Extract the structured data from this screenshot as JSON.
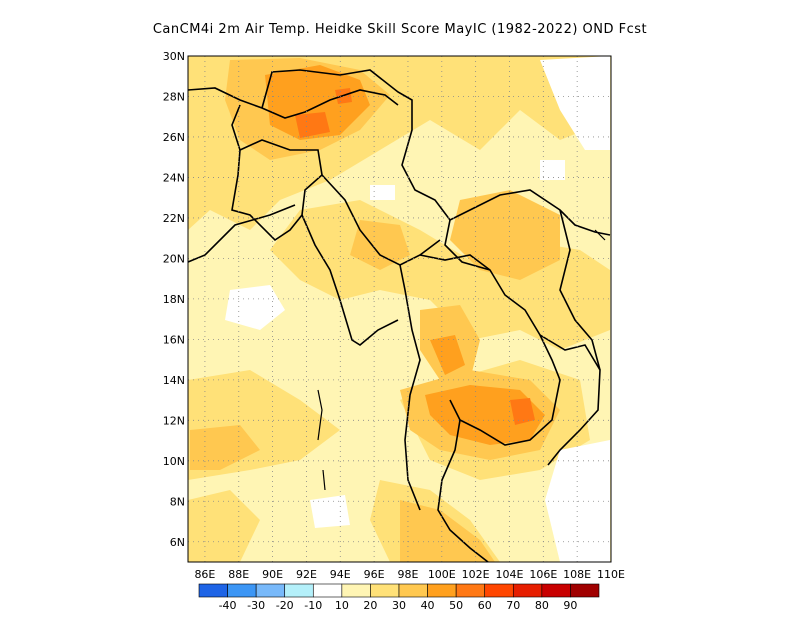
{
  "title": "CanCM4i 2m Air Temp. Heidke Skill Score MayIC (1982-2022) OND Fcst",
  "map": {
    "lon_range": [
      85,
      110
    ],
    "lat_range": [
      5,
      30
    ],
    "lat_ticks": [
      "30N",
      "28N",
      "26N",
      "24N",
      "22N",
      "20N",
      "18N",
      "16N",
      "14N",
      "12N",
      "10N",
      "8N",
      "6N"
    ],
    "lon_ticks": [
      "86E",
      "88E",
      "90E",
      "92E",
      "94E",
      "96E",
      "98E",
      "100E",
      "102E",
      "104E",
      "106E",
      "108E",
      "110E"
    ],
    "grid": true,
    "grid_style": "dotted"
  },
  "colorbar": {
    "colors": [
      "#1e64e6",
      "#3c96f5",
      "#78b9fa",
      "#b4f0fa",
      "#ffffff",
      "#fff5b4",
      "#ffe178",
      "#ffc850",
      "#ffa01e",
      "#ff7814",
      "#ff4600",
      "#e61e00",
      "#c80000",
      "#a00000"
    ],
    "labels": [
      "-40",
      "-30",
      "-20",
      "-10",
      "10",
      "20",
      "30",
      "40",
      "50",
      "60",
      "70",
      "80",
      "90"
    ]
  }
}
